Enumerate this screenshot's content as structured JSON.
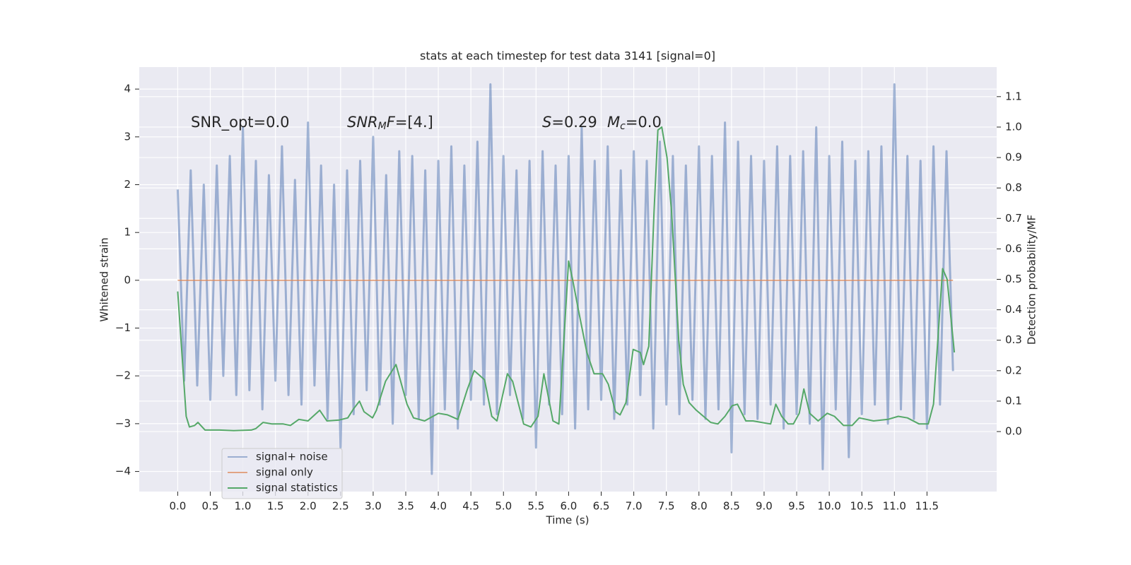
{
  "chart_data": {
    "type": "line",
    "title": "stats at each timestep for test data 3141 [signal=0]",
    "x_label": "Time (s)",
    "y_label": "Whitened strain",
    "y2_label": "Detection probability/MF",
    "annotations": [
      {
        "parts": [
          {
            "text": "SNR_opt=0.0",
            "style": "normal"
          }
        ]
      },
      {
        "parts": [
          {
            "text": "SNR",
            "style": "italic"
          },
          {
            "text": "M",
            "style": "sub"
          },
          {
            "text": "F",
            "style": "italic"
          },
          {
            "text": "=[4.]",
            "style": "normal"
          }
        ]
      },
      {
        "parts": [
          {
            "text": "S",
            "style": "italic"
          },
          {
            "text": "=0.29",
            "style": "normal"
          }
        ]
      },
      {
        "parts": [
          {
            "text": "M",
            "style": "italic"
          },
          {
            "text": "c",
            "style": "sub"
          },
          {
            "text": "=0.0",
            "style": "normal"
          }
        ]
      }
    ],
    "x": [
      0,
      0.1,
      0.2,
      0.3,
      0.4,
      0.5,
      0.6,
      0.7,
      0.8,
      0.9,
      1,
      1.1,
      1.2,
      1.3,
      1.4,
      1.5,
      1.6,
      1.7,
      1.8,
      1.9,
      2,
      2.1,
      2.2,
      2.3,
      2.4,
      2.5,
      2.6,
      2.7,
      2.8,
      2.9,
      3,
      3.1,
      3.2,
      3.3,
      3.4,
      3.5,
      3.6,
      3.7,
      3.8,
      3.9,
      4,
      4.1,
      4.2,
      4.3,
      4.4,
      4.5,
      4.6,
      4.7,
      4.8,
      4.9,
      5,
      5.1,
      5.2,
      5.3,
      5.4,
      5.5,
      5.6,
      5.7,
      5.8,
      5.9,
      6,
      6.1,
      6.2,
      6.3,
      6.4,
      6.5,
      6.6,
      6.7,
      6.8,
      6.9,
      7,
      7.1,
      7.2,
      7.3,
      7.4,
      7.5,
      7.6,
      7.7,
      7.8,
      7.9,
      8,
      8.1,
      8.2,
      8.3,
      8.4,
      8.5,
      8.6,
      8.7,
      8.8,
      8.9,
      9,
      9.1,
      9.2,
      9.3,
      9.4,
      9.5,
      9.6,
      9.7,
      9.8,
      9.9,
      10,
      10.1,
      10.2,
      10.3,
      10.4,
      10.5,
      10.6,
      10.7,
      10.8,
      10.9,
      11,
      11.1,
      11.2,
      11.3,
      11.4,
      11.5,
      11.6,
      11.7,
      11.8,
      11.9
    ],
    "series": [
      {
        "name": "signal+ noise",
        "color": "#4c72b0",
        "opacity": 0.5,
        "values": [
          1.9,
          -2.1,
          2.3,
          -2.2,
          2.0,
          -2.5,
          2.4,
          -2.0,
          2.6,
          -2.4,
          3.2,
          -2.3,
          2.5,
          -2.7,
          2.2,
          -2.1,
          2.8,
          -2.4,
          2.1,
          -2.6,
          3.3,
          -2.2,
          2.4,
          -2.9,
          2.0,
          -3.5,
          2.3,
          -2.8,
          2.5,
          -2.3,
          3.0,
          -2.6,
          2.2,
          -3.0,
          2.7,
          -2.4,
          2.6,
          -2.9,
          2.3,
          -4.05,
          2.5,
          -2.7,
          2.8,
          -3.1,
          2.4,
          -2.5,
          2.9,
          -2.6,
          4.1,
          -2.8,
          2.6,
          -2.4,
          2.3,
          -2.9,
          2.5,
          -3.5,
          2.7,
          -2.6,
          2.4,
          -2.8,
          2.6,
          -3.1,
          3.2,
          -2.7,
          2.5,
          -2.5,
          2.8,
          -2.9,
          2.3,
          -2.6,
          2.7,
          -2.4,
          2.5,
          -3.1,
          2.9,
          -2.6,
          2.6,
          -2.8,
          2.4,
          -2.5,
          2.8,
          -2.9,
          2.6,
          -2.7,
          3.3,
          -3.6,
          2.9,
          -2.8,
          2.6,
          -2.9,
          2.5,
          -2.6,
          2.8,
          -3.1,
          2.6,
          -2.8,
          2.7,
          -3.0,
          3.2,
          -3.95,
          2.6,
          -2.7,
          2.9,
          -3.7,
          2.5,
          -2.8,
          2.7,
          -2.6,
          2.8,
          -3.0,
          4.1,
          -2.7,
          2.6,
          -2.9,
          2.5,
          -3.1,
          2.8,
          -2.6,
          2.7,
          -1.9
        ]
      },
      {
        "name": "signal only",
        "color": "#dd8452",
        "opacity": 0.7,
        "values": [
          0,
          0,
          0,
          0,
          0,
          0,
          0,
          0,
          0,
          0,
          0,
          0,
          0,
          0,
          0,
          0,
          0,
          0,
          0,
          0,
          0,
          0,
          0,
          0,
          0,
          0,
          0,
          0,
          0,
          0,
          0,
          0,
          0,
          0,
          0,
          0,
          0,
          0,
          0,
          0,
          0,
          0,
          0,
          0,
          0,
          0,
          0,
          0,
          0,
          0,
          0,
          0,
          0,
          0,
          0,
          0,
          0,
          0,
          0,
          0,
          0,
          0,
          0,
          0,
          0,
          0,
          0,
          0,
          0,
          0,
          0,
          0,
          0,
          0,
          0,
          0,
          0,
          0,
          0,
          0,
          0,
          0,
          0,
          0,
          0,
          0,
          0,
          0,
          0,
          0,
          0,
          0,
          0,
          0,
          0,
          0,
          0,
          0,
          0,
          0,
          0,
          0,
          0,
          0,
          0,
          0,
          0,
          0,
          0,
          0,
          0,
          0,
          0,
          0,
          0,
          0,
          0,
          0,
          0,
          0
        ]
      },
      {
        "name": "signal statistics",
        "color": "#55a868",
        "opacity": 1,
        "axis": "y2",
        "x": [
          0,
          0.13,
          0.18,
          0.26,
          0.31,
          0.42,
          0.64,
          0.86,
          1.13,
          1.2,
          1.31,
          1.45,
          1.62,
          1.73,
          1.86,
          2.0,
          2.18,
          2.29,
          2.48,
          2.61,
          2.7,
          2.79,
          2.86,
          2.99,
          3.05,
          3.19,
          3.35,
          3.52,
          3.62,
          3.79,
          4.0,
          4.14,
          4.3,
          4.44,
          4.55,
          4.71,
          4.82,
          4.9,
          5.06,
          5.14,
          5.31,
          5.42,
          5.53,
          5.62,
          5.76,
          5.85,
          6.0,
          6.06,
          6.15,
          6.28,
          6.39,
          6.52,
          6.61,
          6.72,
          6.79,
          6.88,
          6.99,
          7.1,
          7.15,
          7.23,
          7.31,
          7.37,
          7.43,
          7.51,
          7.58,
          7.69,
          7.76,
          7.85,
          7.96,
          8.07,
          8.18,
          8.29,
          8.4,
          8.51,
          8.59,
          8.72,
          8.83,
          8.96,
          9.1,
          9.18,
          9.27,
          9.37,
          9.45,
          9.54,
          9.61,
          9.7,
          9.83,
          9.97,
          10.08,
          10.22,
          10.35,
          10.46,
          10.68,
          10.9,
          11.06,
          11.2,
          11.38,
          11.52,
          11.6,
          11.74,
          11.81,
          11.92
        ],
        "values": [
          0.46,
          0.05,
          0.015,
          0.02,
          0.03,
          0.005,
          0.005,
          0.003,
          0.005,
          0.01,
          0.03,
          0.025,
          0.025,
          0.02,
          0.04,
          0.035,
          0.07,
          0.035,
          0.038,
          0.045,
          0.075,
          0.1,
          0.065,
          0.045,
          0.07,
          0.165,
          0.22,
          0.09,
          0.045,
          0.035,
          0.06,
          0.055,
          0.04,
          0.135,
          0.2,
          0.17,
          0.05,
          0.035,
          0.19,
          0.165,
          0.025,
          0.015,
          0.05,
          0.19,
          0.035,
          0.025,
          0.56,
          0.5,
          0.4,
          0.26,
          0.19,
          0.19,
          0.155,
          0.065,
          0.055,
          0.095,
          0.27,
          0.26,
          0.22,
          0.28,
          0.72,
          0.99,
          1.0,
          0.9,
          0.72,
          0.3,
          0.155,
          0.095,
          0.07,
          0.05,
          0.03,
          0.025,
          0.05,
          0.085,
          0.09,
          0.035,
          0.035,
          0.03,
          0.025,
          0.09,
          0.05,
          0.025,
          0.025,
          0.06,
          0.14,
          0.06,
          0.035,
          0.06,
          0.05,
          0.02,
          0.02,
          0.045,
          0.035,
          0.04,
          0.05,
          0.045,
          0.025,
          0.025,
          0.09,
          0.535,
          0.5,
          0.26
        ]
      }
    ],
    "xlim": [
      -0.59,
      12.57
    ],
    "xticks": [
      {
        "value": 0,
        "label": "0.0"
      },
      {
        "value": 0.5,
        "label": "0.5"
      },
      {
        "value": 1,
        "label": "1.0"
      },
      {
        "value": 1.5,
        "label": "1.5"
      },
      {
        "value": 2,
        "label": "2.0"
      },
      {
        "value": 2.5,
        "label": "2.5"
      },
      {
        "value": 3,
        "label": "3.0"
      },
      {
        "value": 3.5,
        "label": "3.5"
      },
      {
        "value": 4,
        "label": "4.0"
      },
      {
        "value": 4.5,
        "label": "4.5"
      },
      {
        "value": 5,
        "label": "5.0"
      },
      {
        "value": 5.5,
        "label": "5.5"
      },
      {
        "value": 6,
        "label": "6.0"
      },
      {
        "value": 6.5,
        "label": "6.5"
      },
      {
        "value": 7,
        "label": "7.0"
      },
      {
        "value": 7.5,
        "label": "7.5"
      },
      {
        "value": 8,
        "label": "8.0"
      },
      {
        "value": 8.5,
        "label": "8.5"
      },
      {
        "value": 9,
        "label": "9.0"
      },
      {
        "value": 9.5,
        "label": "9.5"
      },
      {
        "value": 10,
        "label": "10.0"
      },
      {
        "value": 10.5,
        "label": "10.5"
      },
      {
        "value": 11,
        "label": "11.0"
      },
      {
        "value": 11.5,
        "label": "11.5"
      }
    ],
    "ylim": [
      -4.42,
      4.46
    ],
    "yticks": [
      {
        "value": -4,
        "label": "−4"
      },
      {
        "value": -3,
        "label": "−3"
      },
      {
        "value": -2,
        "label": "−2"
      },
      {
        "value": -1,
        "label": "−1"
      },
      0,
      1,
      2,
      3,
      4
    ],
    "y2lim": [
      -0.197,
      1.197
    ],
    "y2ticks": [
      {
        "value": 0,
        "label": "0.0"
      },
      {
        "value": 0.1,
        "label": "0.1"
      },
      {
        "value": 0.2,
        "label": "0.2"
      },
      {
        "value": 0.3,
        "label": "0.3"
      },
      {
        "value": 0.4,
        "label": "0.4"
      },
      {
        "value": 0.5,
        "label": "0.5"
      },
      {
        "value": 0.6,
        "label": "0.6"
      },
      {
        "value": 0.7,
        "label": "0.7"
      },
      {
        "value": 0.8,
        "label": "0.8"
      },
      {
        "value": 0.9,
        "label": "0.9"
      },
      {
        "value": 1,
        "label": "1.0"
      },
      {
        "value": 1.1,
        "label": "1.1"
      }
    ],
    "grid": true,
    "legend": "lower left"
  }
}
